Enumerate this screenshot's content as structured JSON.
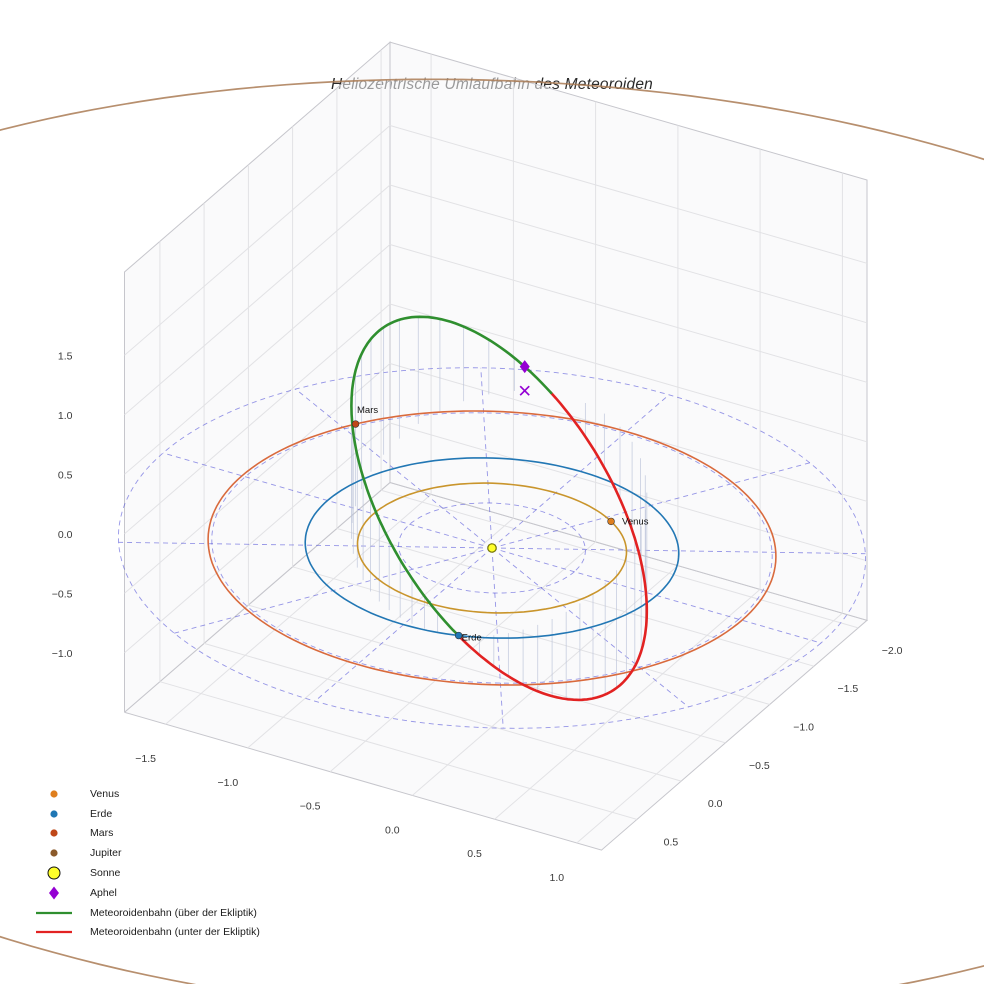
{
  "chart_data": {
    "type": "3d-orbit-plot",
    "title": "Heliozentrische Umlaufbahn des Meteoroiden",
    "axes": {
      "x_ticks": [
        -1.5,
        -1.0,
        -0.5,
        0.0,
        0.5,
        1.0
      ],
      "y_ticks": [
        -2.0,
        -1.5,
        -1.0,
        -0.5,
        0.0,
        0.5
      ],
      "z_ticks": [
        1.5,
        1.0,
        0.5,
        0.0,
        -0.5,
        -1.0
      ],
      "xlim": [
        -1.75,
        1.15
      ],
      "ylim": [
        -2.1,
        0.9
      ],
      "zlim": [
        -1.5,
        2.2
      ],
      "grid": true
    },
    "sun": {
      "label": "Sonne",
      "x": 0,
      "y": 0,
      "z": 0,
      "color": "#ffff2a",
      "edge_color": "#7a7a00"
    },
    "planets": [
      {
        "name": "Venus",
        "orbit_radius_au": 0.72,
        "angle_deg": -56,
        "orbit_color": "#c9952c",
        "marker_color": "#df7f1e",
        "show_label": true
      },
      {
        "name": "Erde",
        "orbit_radius_au": 1.0,
        "angle_deg": 72,
        "orbit_color": "#2277b4",
        "marker_color": "#1f77b4",
        "show_label": true
      },
      {
        "name": "Mars",
        "orbit_radius_au": 1.52,
        "angle_deg": 213,
        "orbit_color": "#d96a3d",
        "marker_color": "#bf4718",
        "show_label": true
      },
      {
        "name": "Jupiter",
        "orbit_radius_au": 5.2,
        "angle_deg": null,
        "orbit_color": "#aa7b55",
        "marker_color": "#8b5a2b",
        "show_label": false
      }
    ],
    "meteoroid_orbit": {
      "semi_major_axis_au": 1.39,
      "eccentricity": 0.28,
      "inclination_deg": 55,
      "ascending_node_deg": 72,
      "arg_perihelion_deg": -8,
      "above_ecliptic_color": "#2f8f2f",
      "below_ecliptic_color": "#e22222",
      "above_label": "Meteoroidenbahn (über der Ekliptik)",
      "below_label": "Meteoroidenbahn (unter der Ekliptik)"
    },
    "aphel": {
      "label": "Aphel",
      "x": -0.679,
      "y": -1.632,
      "z": 0.203,
      "color": "#9400d3"
    },
    "ecliptic_grid": {
      "circle_radii_au": [
        0.5,
        1.0,
        1.5,
        2.0
      ],
      "n_spokes": 12,
      "max_radius_au": 2.0,
      "color": "#4242d6"
    },
    "drop_lines": {
      "color": "#bcc4da"
    },
    "legend": {
      "items": [
        {
          "label": "Venus",
          "marker": "dot",
          "color": "#df7f1e"
        },
        {
          "label": "Erde",
          "marker": "dot",
          "color": "#1f77b4"
        },
        {
          "label": "Mars",
          "marker": "dot",
          "color": "#bf4718"
        },
        {
          "label": "Jupiter",
          "marker": "dot",
          "color": "#8b5a2b"
        },
        {
          "label": "Sonne",
          "marker": "circle-large",
          "color": "#ffff2a",
          "edge_color": "#111111"
        },
        {
          "label": "Aphel",
          "marker": "diamond",
          "color": "#9400d3"
        },
        {
          "label": "Meteoroidenbahn (über der Ekliptik)",
          "marker": "line",
          "color": "#2f8f2f"
        },
        {
          "label": "Meteoroidenbahn (unter der Ekliptik)",
          "marker": "line",
          "color": "#e22222"
        }
      ]
    }
  }
}
